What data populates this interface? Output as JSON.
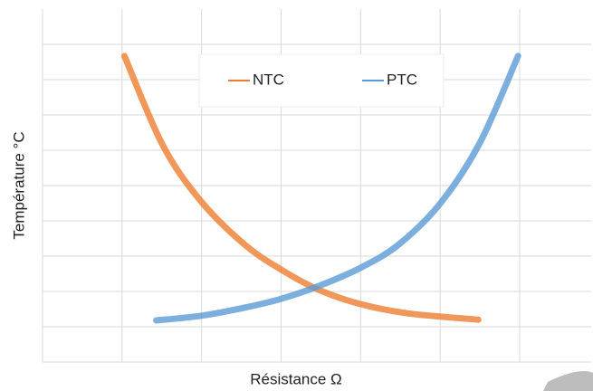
{
  "chart_data": {
    "type": "line",
    "xlabel": "Résistance Ω",
    "ylabel": "Température °C",
    "xlim": [
      0,
      6.9
    ],
    "ylim": [
      0,
      10
    ],
    "xticks": [
      0,
      1,
      2,
      3,
      4,
      5,
      6
    ],
    "yticks": [
      0,
      1,
      2,
      3,
      4,
      5,
      6,
      7,
      8,
      9
    ],
    "grid": true,
    "legend": "top",
    "series": [
      {
        "name": "NTC",
        "color": "#ed7d31",
        "x": [
          1.03,
          1.51,
          1.99,
          2.54,
          3.0,
          3.47,
          4.0,
          4.59,
          5.48
        ],
        "values": [
          8.67,
          6.15,
          4.56,
          3.33,
          2.62,
          2.05,
          1.64,
          1.38,
          1.2
        ]
      },
      {
        "name": "PTC",
        "color": "#5b9bd5",
        "x": [
          1.43,
          1.99,
          2.54,
          3.0,
          3.47,
          4.0,
          4.48,
          5.0,
          5.5,
          5.98
        ],
        "values": [
          1.18,
          1.31,
          1.54,
          1.79,
          2.15,
          2.67,
          3.33,
          4.49,
          6.21,
          8.67
        ]
      }
    ]
  }
}
